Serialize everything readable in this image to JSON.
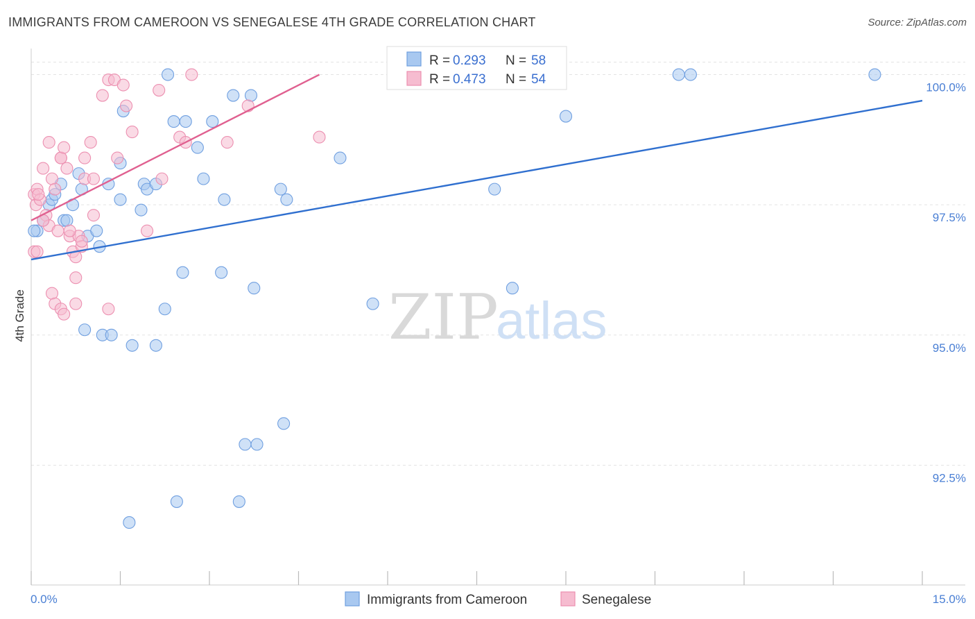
{
  "title": "IMMIGRANTS FROM CAMEROON VS SENEGALESE 4TH GRADE CORRELATION CHART",
  "source": "Source: ZipAtlas.com",
  "watermark": {
    "zip": "ZIP",
    "atlas": "atlas"
  },
  "colors": {
    "blue_fill": "#a8c8f0",
    "blue_stroke": "#6f9fe0",
    "blue_line": "#2f6fcf",
    "pink_fill": "#f6bcd0",
    "pink_stroke": "#ec8fb0",
    "pink_line": "#e06090",
    "grid": "#e3e3e3",
    "tick_text": "#4a7fd4"
  },
  "legend": {
    "items": [
      {
        "r_label": "R =",
        "r_value": "0.293",
        "n_label": "N =",
        "n_value": "58"
      },
      {
        "r_label": "R =",
        "r_value": "0.473",
        "n_label": "N =",
        "n_value": "54"
      }
    ]
  },
  "bottom_legend": [
    "Immigrants from Cameroon",
    "Senegalese"
  ],
  "chart_data": {
    "type": "scatter",
    "title": "IMMIGRANTS FROM CAMEROON VS SENEGALESE 4TH GRADE CORRELATION CHART",
    "xlabel": "",
    "ylabel": "4th Grade",
    "xlim": [
      0,
      15
    ],
    "ylim": [
      90.2,
      100.5
    ],
    "x_tick_labels": [
      "0.0%",
      "15.0%"
    ],
    "y_ticks": [
      92.5,
      95.0,
      97.5,
      100.0
    ],
    "y_tick_labels": [
      "92.5%",
      "95.0%",
      "97.5%",
      "100.0%"
    ],
    "grid": true,
    "legend_position": "top-center",
    "series": [
      {
        "name": "Immigrants from Cameroon",
        "color": "#a8c8f0",
        "trend": {
          "x": [
            0.0,
            15.0
          ],
          "y": [
            96.45,
            99.5
          ]
        },
        "points": [
          [
            0.1,
            97.0
          ],
          [
            0.2,
            97.2
          ],
          [
            0.3,
            97.5
          ],
          [
            0.35,
            97.6
          ],
          [
            0.4,
            97.7
          ],
          [
            0.5,
            97.9
          ],
          [
            0.55,
            97.2
          ],
          [
            0.6,
            97.2
          ],
          [
            0.7,
            97.5
          ],
          [
            0.8,
            98.1
          ],
          [
            0.85,
            97.8
          ],
          [
            0.95,
            96.9
          ],
          [
            1.1,
            97.0
          ],
          [
            1.15,
            96.7
          ],
          [
            1.3,
            97.9
          ],
          [
            1.5,
            97.6
          ],
          [
            1.5,
            98.3
          ],
          [
            1.55,
            99.3
          ],
          [
            1.85,
            97.4
          ],
          [
            1.9,
            97.9
          ],
          [
            1.95,
            97.8
          ],
          [
            2.1,
            97.9
          ],
          [
            2.3,
            100.0
          ],
          [
            2.4,
            99.1
          ],
          [
            2.6,
            99.1
          ],
          [
            2.8,
            98.6
          ],
          [
            2.9,
            98.0
          ],
          [
            3.05,
            99.1
          ],
          [
            3.25,
            97.6
          ],
          [
            3.4,
            99.6
          ],
          [
            3.7,
            99.6
          ],
          [
            4.2,
            97.8
          ],
          [
            4.3,
            97.6
          ],
          [
            0.9,
            95.1
          ],
          [
            1.2,
            95.0
          ],
          [
            1.35,
            95.0
          ],
          [
            1.7,
            94.8
          ],
          [
            2.1,
            94.8
          ],
          [
            2.25,
            95.5
          ],
          [
            2.55,
            96.2
          ],
          [
            3.2,
            96.2
          ],
          [
            3.75,
            95.9
          ],
          [
            5.75,
            95.6
          ],
          [
            8.1,
            95.9
          ],
          [
            4.25,
            93.3
          ],
          [
            3.6,
            92.9
          ],
          [
            3.8,
            92.9
          ],
          [
            2.45,
            91.8
          ],
          [
            3.5,
            91.8
          ],
          [
            1.65,
            91.4
          ],
          [
            7.8,
            97.8
          ],
          [
            9.0,
            99.2
          ],
          [
            10.9,
            100.0
          ],
          [
            11.1,
            100.0
          ],
          [
            14.2,
            100.0
          ],
          [
            6.9,
            100.0
          ],
          [
            5.2,
            98.4
          ],
          [
            0.05,
            97.0
          ]
        ]
      },
      {
        "name": "Senegalese",
        "color": "#f6bcd0",
        "trend": {
          "x": [
            0.0,
            4.85
          ],
          "y": [
            97.2,
            100.0
          ]
        },
        "points": [
          [
            0.05,
            97.7
          ],
          [
            0.08,
            97.5
          ],
          [
            0.1,
            97.8
          ],
          [
            0.15,
            97.6
          ],
          [
            0.2,
            98.2
          ],
          [
            0.25,
            97.3
          ],
          [
            0.3,
            97.1
          ],
          [
            0.3,
            98.7
          ],
          [
            0.35,
            98.0
          ],
          [
            0.4,
            97.8
          ],
          [
            0.5,
            98.4
          ],
          [
            0.5,
            98.4
          ],
          [
            0.55,
            98.6
          ],
          [
            0.6,
            98.2
          ],
          [
            0.65,
            96.9
          ],
          [
            0.7,
            96.6
          ],
          [
            0.75,
            96.5
          ],
          [
            0.8,
            96.9
          ],
          [
            0.85,
            96.7
          ],
          [
            0.9,
            98.0
          ],
          [
            0.9,
            98.4
          ],
          [
            1.0,
            98.7
          ],
          [
            1.05,
            98.0
          ],
          [
            1.05,
            97.3
          ],
          [
            1.2,
            99.6
          ],
          [
            1.3,
            99.9
          ],
          [
            1.4,
            99.9
          ],
          [
            1.45,
            98.4
          ],
          [
            1.55,
            99.8
          ],
          [
            1.6,
            99.4
          ],
          [
            1.7,
            98.9
          ],
          [
            1.95,
            97.0
          ],
          [
            2.15,
            99.7
          ],
          [
            2.2,
            98.0
          ],
          [
            2.5,
            98.8
          ],
          [
            2.6,
            98.7
          ],
          [
            2.7,
            100.0
          ],
          [
            3.3,
            98.7
          ],
          [
            3.65,
            99.4
          ],
          [
            4.85,
            98.8
          ],
          [
            0.05,
            96.6
          ],
          [
            0.1,
            96.6
          ],
          [
            0.35,
            95.8
          ],
          [
            0.4,
            95.6
          ],
          [
            0.5,
            95.5
          ],
          [
            0.55,
            95.4
          ],
          [
            0.75,
            96.1
          ],
          [
            0.75,
            95.6
          ],
          [
            1.3,
            95.5
          ],
          [
            0.2,
            97.2
          ],
          [
            0.45,
            97.0
          ],
          [
            0.65,
            97.0
          ],
          [
            0.85,
            96.8
          ],
          [
            0.12,
            97.7
          ]
        ]
      }
    ]
  }
}
